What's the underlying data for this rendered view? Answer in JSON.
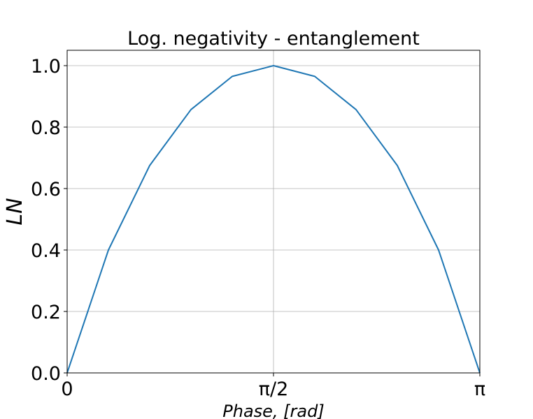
{
  "chart_data": {
    "type": "line",
    "title": "Log. negativity - entanglement",
    "xlabel": "Phase, [rad]",
    "ylabel": "LN",
    "xlim": [
      0,
      3.14159265
    ],
    "ylim": [
      0,
      1.05
    ],
    "x_ticks": [
      {
        "value": 0,
        "label": "0"
      },
      {
        "value": 1.5707963,
        "label": "π/2"
      },
      {
        "value": 3.14159265,
        "label": "π"
      }
    ],
    "y_ticks": [
      {
        "value": 0.0,
        "label": "0.0"
      },
      {
        "value": 0.2,
        "label": "0.2"
      },
      {
        "value": 0.4,
        "label": "0.4"
      },
      {
        "value": 0.6,
        "label": "0.6"
      },
      {
        "value": 0.8,
        "label": "0.8"
      },
      {
        "value": 1.0,
        "label": "1.0"
      }
    ],
    "grid": true,
    "series": [
      {
        "color": "#1f77b4",
        "x": [
          0,
          0.3141593,
          0.6283185,
          0.9424778,
          1.2566371,
          1.5707963,
          1.8849556,
          2.1991149,
          2.5132741,
          2.8274334,
          3.1415927
        ],
        "y": [
          0.0,
          0.4,
          0.675,
          0.857,
          0.965,
          1.0,
          0.965,
          0.857,
          0.675,
          0.4,
          0.0
        ]
      }
    ]
  }
}
